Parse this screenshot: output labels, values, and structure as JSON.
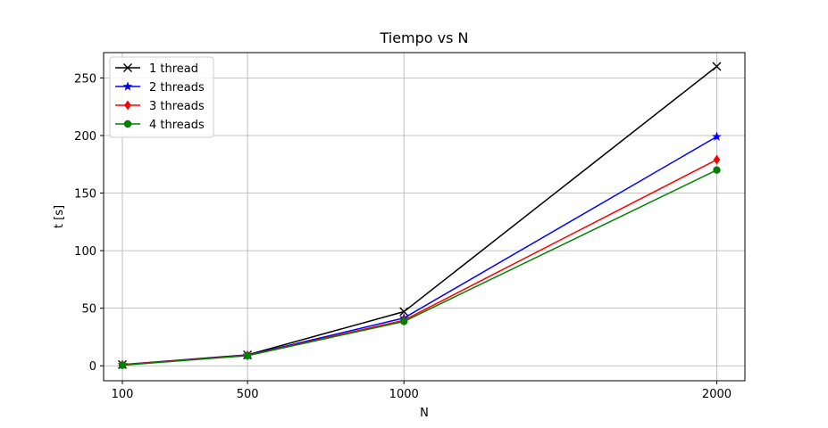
{
  "chart_data": {
    "type": "line",
    "title": "Tiempo vs N",
    "xlabel": "N",
    "ylabel": "t [s]",
    "x": [
      100,
      500,
      1000,
      2000
    ],
    "xticks": [
      100,
      500,
      1000,
      2000
    ],
    "yticks": [
      0,
      50,
      100,
      150,
      200,
      250
    ],
    "xlim": [
      40,
      2090
    ],
    "ylim": [
      -13,
      272
    ],
    "grid": true,
    "legend_position": "top-left",
    "series": [
      {
        "name": "1 thread",
        "color": "#000000",
        "marker": "x",
        "values": [
          1.0,
          9.5,
          47.0,
          260.0
        ]
      },
      {
        "name": "2 threads",
        "color": "#0000ff",
        "marker": "star",
        "values": [
          0.9,
          9.2,
          41.5,
          199.0
        ]
      },
      {
        "name": "3 threads",
        "color": "#ff0000",
        "marker": "diamond",
        "values": [
          0.8,
          9.0,
          39.5,
          179.0
        ]
      },
      {
        "name": "4 threads",
        "color": "#008000",
        "marker": "circle",
        "values": [
          0.5,
          8.8,
          38.5,
          170.0
        ]
      }
    ]
  }
}
